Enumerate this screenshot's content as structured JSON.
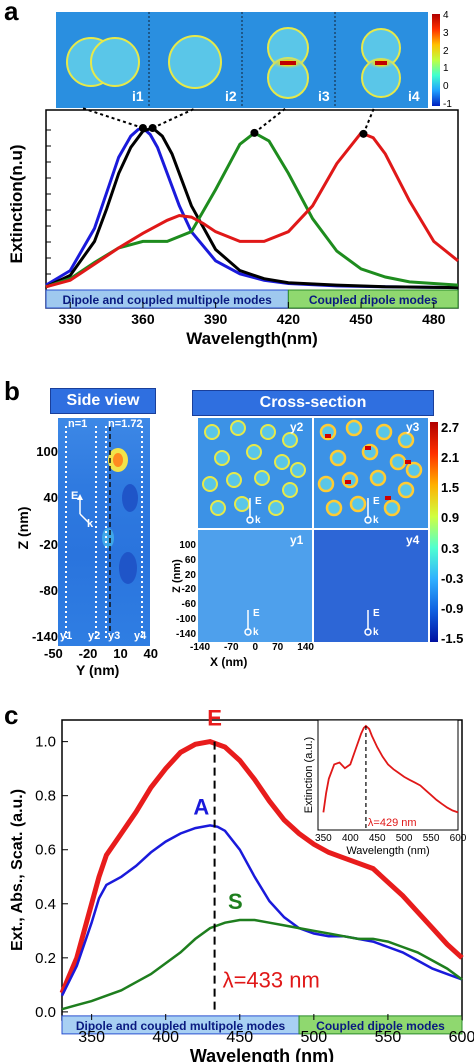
{
  "panels": {
    "a": {
      "label": "a",
      "chart_data": {
        "type": "line",
        "xlabel": "Wavelength(nm)",
        "ylabel": "Extinction(n.u)",
        "xlim": [
          320,
          490
        ],
        "xticks": [
          330,
          360,
          390,
          420,
          450,
          480
        ],
        "grid": false,
        "series": [
          {
            "color": "#1a1adb",
            "x": [
              320,
              330,
              340,
              345,
              350,
              355,
              358,
              360,
              363,
              366,
              370,
              375,
              380,
              390,
              400,
              410,
              420,
              440,
              460,
              490
            ],
            "y": [
              0.03,
              0.12,
              0.38,
              0.6,
              0.82,
              0.95,
              0.99,
              1.0,
              0.96,
              0.88,
              0.72,
              0.52,
              0.36,
              0.18,
              0.1,
              0.06,
              0.04,
              0.025,
              0.02,
              0.015
            ]
          },
          {
            "color": "#000000",
            "x": [
              320,
              330,
              340,
              345,
              350,
              355,
              360,
              364,
              368,
              372,
              376,
              380,
              390,
              400,
              410,
              420,
              440,
              460,
              490
            ],
            "y": [
              0.02,
              0.09,
              0.3,
              0.5,
              0.72,
              0.88,
              0.98,
              1.0,
              0.95,
              0.84,
              0.68,
              0.52,
              0.25,
              0.12,
              0.07,
              0.045,
              0.03,
              0.02,
              0.015
            ]
          },
          {
            "color": "#1e8c1e",
            "x": [
              320,
              330,
              340,
              350,
              360,
              370,
              380,
              390,
              400,
              406,
              412,
              420,
              430,
              440,
              450,
              460,
              470,
              490
            ],
            "y": [
              0.02,
              0.07,
              0.17,
              0.26,
              0.3,
              0.3,
              0.36,
              0.62,
              0.9,
              0.97,
              0.92,
              0.72,
              0.44,
              0.24,
              0.13,
              0.08,
              0.05,
              0.03
            ]
          },
          {
            "color": "#e01818",
            "x": [
              320,
              330,
              340,
              350,
              360,
              370,
              375,
              380,
              385,
              390,
              400,
              410,
              420,
              430,
              440,
              450,
              455,
              460,
              470,
              480,
              490
            ],
            "y": [
              0.02,
              0.06,
              0.16,
              0.26,
              0.35,
              0.43,
              0.46,
              0.45,
              0.41,
              0.36,
              0.3,
              0.3,
              0.36,
              0.52,
              0.78,
              0.97,
              0.94,
              0.84,
              0.55,
              0.3,
              0.18
            ]
          }
        ],
        "peak_markers": [
          360,
          364,
          406,
          451
        ],
        "mode_bands": [
          {
            "label": "Dipole and coupled multipole modes",
            "from": 320,
            "to": 420,
            "color": "#9fc9ef"
          },
          {
            "label": "Coupled dipole modes",
            "from": 420,
            "to": 490,
            "color": "#8fd86f"
          }
        ]
      },
      "field_maps": [
        "i1",
        "i2",
        "i3",
        "i4"
      ],
      "colorbar_ticks": [
        "4",
        "3",
        "2",
        "1",
        "0",
        "-1"
      ]
    },
    "b": {
      "label": "b",
      "side_view": {
        "title": "Side view",
        "n_left": "n=1",
        "n_right": "n=1.72",
        "zlabel": "Z (nm)",
        "zticks": [
          "100",
          "40",
          "-20",
          "-80",
          "-140"
        ],
        "ylabel": "Y (nm)",
        "yticks": [
          "-50",
          "-20",
          "10",
          "40"
        ],
        "cut_labels": [
          "y1",
          "y2",
          "y3",
          "y4"
        ],
        "e_label": "E",
        "k_label": "k"
      },
      "cross_section": {
        "title": "Cross-section",
        "maps": [
          "y2",
          "y3",
          "y1",
          "y4"
        ],
        "zlabel": "Z (nm)",
        "zticks": [
          "100",
          "60",
          "20",
          "-20",
          "-60",
          "-100",
          "-140"
        ],
        "xlabel": "X (nm)",
        "xticks": [
          "-140",
          "-70",
          "0",
          "70",
          "140"
        ],
        "e_label": "E",
        "k_label": "k"
      },
      "colorbar_ticks": [
        "2.7",
        "2.1",
        "1.5",
        "0.9",
        "0.3",
        "-0.3",
        "-0.9",
        "-1.5"
      ]
    },
    "c": {
      "label": "c",
      "chart_data": {
        "type": "line",
        "xlabel": "Wavelength (nm)",
        "ylabel": "Ext., Abs., Scat. (a.u.)",
        "xlim": [
          330,
          600
        ],
        "ylim": [
          -0.03,
          1.08
        ],
        "xticks": [
          350,
          400,
          450,
          500,
          550,
          600
        ],
        "yticks": [
          0.0,
          0.2,
          0.4,
          0.6,
          0.8,
          1.0
        ],
        "grid": false,
        "series": [
          {
            "name": "E",
            "color": "#e81c1c",
            "x": [
              330,
              340,
              350,
              355,
              360,
              370,
              380,
              390,
              400,
              410,
              420,
              430,
              440,
              450,
              460,
              470,
              480,
              490,
              500,
              510,
              520,
              530,
              540,
              550,
              560,
              570,
              580,
              590,
              600
            ],
            "y": [
              0.07,
              0.2,
              0.4,
              0.5,
              0.58,
              0.66,
              0.74,
              0.83,
              0.9,
              0.96,
              0.99,
              1.0,
              0.98,
              0.93,
              0.86,
              0.78,
              0.71,
              0.66,
              0.62,
              0.59,
              0.57,
              0.55,
              0.53,
              0.48,
              0.43,
              0.37,
              0.31,
              0.25,
              0.2
            ]
          },
          {
            "name": "A",
            "color": "#1a1adb",
            "x": [
              330,
              340,
              350,
              355,
              360,
              370,
              380,
              390,
              400,
              410,
              420,
              430,
              435,
              440,
              450,
              460,
              470,
              480,
              490,
              500,
              510,
              520,
              530,
              540,
              550,
              560,
              570,
              580,
              590,
              600
            ],
            "y": [
              0.06,
              0.17,
              0.33,
              0.42,
              0.47,
              0.5,
              0.54,
              0.59,
              0.63,
              0.66,
              0.68,
              0.69,
              0.685,
              0.67,
              0.6,
              0.5,
              0.41,
              0.35,
              0.31,
              0.29,
              0.28,
              0.28,
              0.27,
              0.26,
              0.24,
              0.22,
              0.19,
              0.16,
              0.14,
              0.12
            ]
          },
          {
            "name": "S",
            "color": "#1e7e1e",
            "x": [
              330,
              340,
              350,
              360,
              370,
              380,
              390,
              400,
              410,
              420,
              430,
              440,
              450,
              460,
              470,
              480,
              490,
              500,
              510,
              520,
              530,
              540,
              550,
              560,
              570,
              580,
              590,
              600
            ],
            "y": [
              0.01,
              0.025,
              0.04,
              0.06,
              0.08,
              0.11,
              0.14,
              0.18,
              0.22,
              0.27,
              0.31,
              0.33,
              0.34,
              0.34,
              0.33,
              0.32,
              0.31,
              0.3,
              0.29,
              0.28,
              0.27,
              0.27,
              0.26,
              0.24,
              0.22,
              0.19,
              0.16,
              0.12
            ]
          }
        ],
        "annotation": {
          "label": "λ=433 nm",
          "x": 433
        },
        "mode_bands": [
          {
            "label": "Dipole and coupled multipole modes",
            "from": 330,
            "to": 490,
            "color": "#a8d0f3"
          },
          {
            "label": "Coupled dipole modes",
            "from": 490,
            "to": 600,
            "color": "#8fd86f"
          }
        ],
        "inset": {
          "xlabel": "Wavelength (nm)",
          "ylabel": "Extinction (a.u.)",
          "xlim": [
            340,
            600
          ],
          "xticks": [
            350,
            400,
            450,
            500,
            550,
            600
          ],
          "color": "#e01818",
          "x": [
            350,
            355,
            360,
            370,
            380,
            390,
            400,
            405,
            410,
            420,
            425,
            429,
            435,
            440,
            450,
            460,
            470,
            480,
            490,
            500,
            510,
            520,
            530,
            540,
            550,
            560,
            570,
            580,
            590,
            600
          ],
          "y": [
            0.1,
            0.3,
            0.45,
            0.6,
            0.62,
            0.56,
            0.6,
            0.68,
            0.76,
            0.92,
            0.98,
            1.0,
            0.97,
            0.9,
            0.78,
            0.68,
            0.6,
            0.55,
            0.51,
            0.47,
            0.44,
            0.41,
            0.38,
            0.33,
            0.28,
            0.23,
            0.19,
            0.15,
            0.12,
            0.1
          ],
          "annotation": {
            "label": "λ=429 nm",
            "x": 429
          }
        }
      }
    }
  }
}
